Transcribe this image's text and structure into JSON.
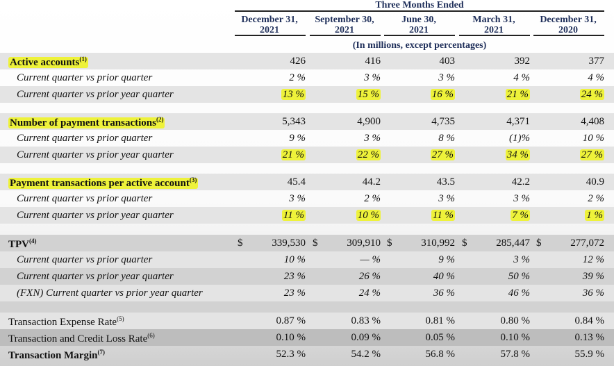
{
  "header": {
    "title": "Three Months Ended",
    "columns": [
      {
        "line1": "December 31,",
        "line2": "2021"
      },
      {
        "line1": "September 30,",
        "line2": "2021"
      },
      {
        "line1": "June 30,",
        "line2": "2021"
      },
      {
        "line1": "March 31,",
        "line2": "2021"
      },
      {
        "line1": "December 31,",
        "line2": "2020"
      }
    ],
    "units_note": "(In millions, except percentages)"
  },
  "highlight_color": "#eef23a",
  "rows": [
    {
      "label": "Active accounts",
      "note": "(1)",
      "values": [
        "426",
        "416",
        "403",
        "392",
        "377"
      ]
    },
    {
      "label": "Current quarter vs prior quarter",
      "values": [
        "2 %",
        "3 %",
        "3 %",
        "4 %",
        "4 %"
      ]
    },
    {
      "label": "Current quarter vs prior year quarter",
      "values": [
        "13 %",
        "15 %",
        "16 %",
        "21 %",
        "24 %"
      ]
    },
    {
      "label": "Number of payment transactions",
      "note": "(2)",
      "values": [
        "5,343",
        "4,900",
        "4,735",
        "4,371",
        "4,408"
      ]
    },
    {
      "label": "Current quarter vs prior quarter",
      "values": [
        "9 %",
        "3 %",
        "8 %",
        "(1)%",
        "10 %"
      ]
    },
    {
      "label": "Current quarter vs prior year quarter",
      "values": [
        "21 %",
        "22 %",
        "27 %",
        "34 %",
        "27 %"
      ]
    },
    {
      "label": "Payment transactions per active account",
      "note": "(3)",
      "values": [
        "45.4",
        "44.2",
        "43.5",
        "42.2",
        "40.9"
      ]
    },
    {
      "label": "Current quarter vs prior quarter",
      "values": [
        "3 %",
        "2 %",
        "3 %",
        "3 %",
        "2 %"
      ]
    },
    {
      "label": "Current quarter vs prior year quarter",
      "values": [
        "11 %",
        "10 %",
        "11 %",
        "7 %",
        "1 %"
      ]
    },
    {
      "label": "TPV",
      "note": "(4)",
      "currency": "$",
      "values": [
        "339,530",
        "309,910",
        "310,992",
        "285,447",
        "277,072"
      ]
    },
    {
      "label": "Current quarter vs prior quarter",
      "values": [
        "10 %",
        "— %",
        "9 %",
        "3 %",
        "12 %"
      ]
    },
    {
      "label": "Current quarter vs prior year quarter",
      "values": [
        "23 %",
        "26 %",
        "40 %",
        "50 %",
        "39 %"
      ]
    },
    {
      "label": "(FXN) Current quarter vs prior year quarter",
      "values": [
        "23 %",
        "24 %",
        "36 %",
        "46 %",
        "36 %"
      ]
    },
    {
      "label": "Transaction Expense Rate",
      "note": "(5)",
      "values": [
        "0.87 %",
        "0.83 %",
        "0.81 %",
        "0.80 %",
        "0.84 %"
      ]
    },
    {
      "label": "Transaction and Credit Loss Rate",
      "note": "(6)",
      "values": [
        "0.10 %",
        "0.09 %",
        "0.05 %",
        "0.10 %",
        "0.13 %"
      ]
    },
    {
      "label": "Transaction Margin",
      "note": "(7)",
      "values": [
        "52.3 %",
        "54.2 %",
        "56.8 %",
        "57.8 %",
        "55.9 %"
      ]
    }
  ]
}
